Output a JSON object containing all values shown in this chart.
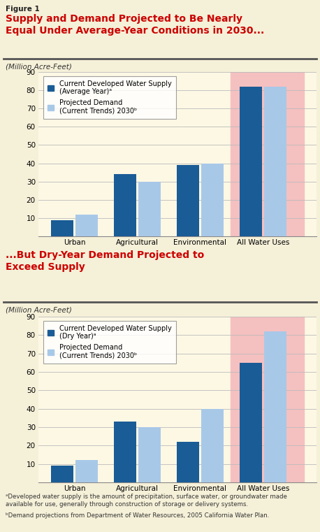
{
  "figure_label": "Figure 1",
  "title1": "Supply and Demand Projected to Be Nearly\nEqual Under Average-Year Conditions in 2030...",
  "title2": "...But Dry-Year Demand Projected to\nExceed Supply",
  "ylabel": "(Million Acre-Feet)",
  "categories": [
    "Urban",
    "Agricultural",
    "Environmental",
    "All Water Uses"
  ],
  "chart1": {
    "supply": [
      9,
      34,
      39,
      82
    ],
    "demand": [
      12,
      30,
      40,
      82
    ],
    "legend_supply": "Current Developed Water Supply\n(Average Year)ᵃ",
    "legend_demand": "Projected Demand\n(Current Trends) 2030ᵇ"
  },
  "chart2": {
    "supply": [
      9,
      33,
      22,
      65
    ],
    "demand": [
      12,
      30,
      40,
      82
    ],
    "legend_supply": "Current Developed Water Supply\n(Dry Year)ᵃ",
    "legend_demand": "Projected Demand\n(Current Trends) 2030ᵇ"
  },
  "supply_color": "#1a5c96",
  "demand_color": "#a8c8e8",
  "highlight_bg": "#f5c0c0",
  "chart_bg": "#fdf8e4",
  "page_bg": "#f5f0d8",
  "ylim": [
    0,
    90
  ],
  "yticks": [
    0,
    10,
    20,
    30,
    40,
    50,
    60,
    70,
    80,
    90
  ],
  "footnote_a": "ᵃDeveloped water supply is the amount of precipitation, surface water, or groundwater made\navailable for use, generally through construction of storage or delivery systems.",
  "footnote_b": "ᵇDemand projections from Department of Water Resources, 2005 California Water Plan.",
  "title_color": "#cc0000",
  "figure_label_color": "#222222",
  "bar_width": 0.35,
  "bar_gap": 0.04
}
